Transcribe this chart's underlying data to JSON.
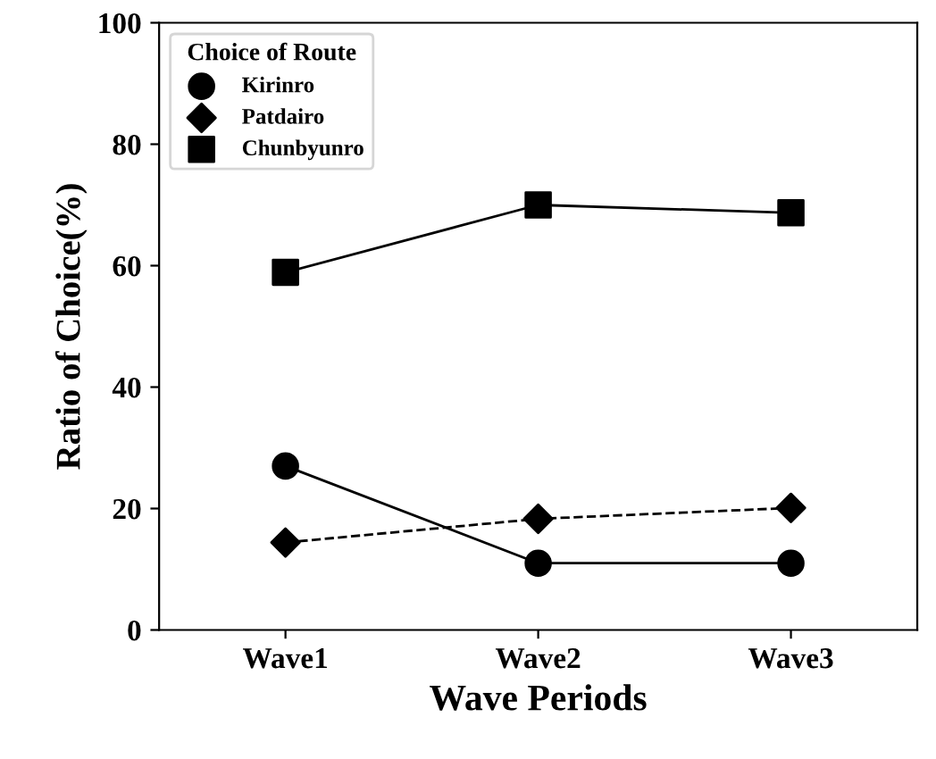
{
  "chart_data": {
    "type": "line",
    "xlabel": "Wave Periods",
    "ylabel": "Ratio of Choice(%)",
    "legend_title": "Choice of Route",
    "legend": "top left",
    "grid": false,
    "categories": [
      "Wave1",
      "Wave2",
      "Wave3"
    ],
    "ylim": [
      0,
      100
    ],
    "yticks": [
      0,
      20,
      40,
      60,
      80,
      100
    ],
    "series": [
      {
        "name": "Kirinro",
        "color": "#000000",
        "marker": "circle",
        "line_style": "solid",
        "values": [
          27,
          11,
          11
        ]
      },
      {
        "name": "Patdairo",
        "color": "#000000",
        "marker": "diamond",
        "line_style": "dashed",
        "values": [
          14.4,
          18.3,
          20.1
        ]
      },
      {
        "name": "Chunbyunro",
        "color": "#000000",
        "marker": "square",
        "line_style": "solid",
        "values": [
          58.9,
          70.0,
          68.7
        ]
      }
    ]
  }
}
